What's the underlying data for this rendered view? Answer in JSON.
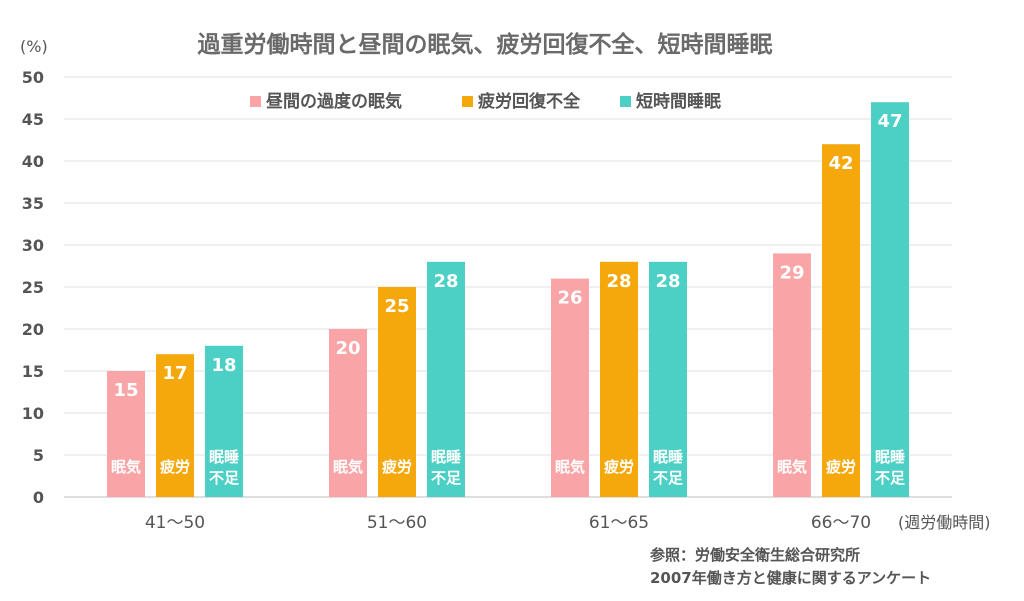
{
  "chart_data": {
    "type": "bar",
    "title": "過重労働時間と昼間の眠気、疲労回復不全、短時間睡眠",
    "ylabel": "(%)",
    "xlabel": "(週労働時間)",
    "ylim": [
      0,
      50
    ],
    "yticks": [
      0,
      5,
      10,
      15,
      20,
      25,
      30,
      35,
      40,
      45,
      50
    ],
    "grid": true,
    "legend_position": "top-center",
    "categories": [
      "41〜50",
      "51〜60",
      "61〜65",
      "66〜70"
    ],
    "series": [
      {
        "name": "昼間の過度の眠気",
        "short_label": "眠気",
        "color": "#f9a4a6",
        "values": [
          15,
          20,
          26,
          29
        ]
      },
      {
        "name": "疲労回復不全",
        "short_label": "疲労",
        "color": "#f5a80c",
        "values": [
          17,
          25,
          28,
          42
        ]
      },
      {
        "name": "短時間睡眠",
        "short_label": "眠睡 不足",
        "color": "#4ccfc4",
        "values": [
          18,
          28,
          28,
          47
        ]
      }
    ]
  },
  "source": {
    "line1": "参照：労働安全衛生総合研究所",
    "line2": "2007年働き方と健康に関するアンケート"
  }
}
